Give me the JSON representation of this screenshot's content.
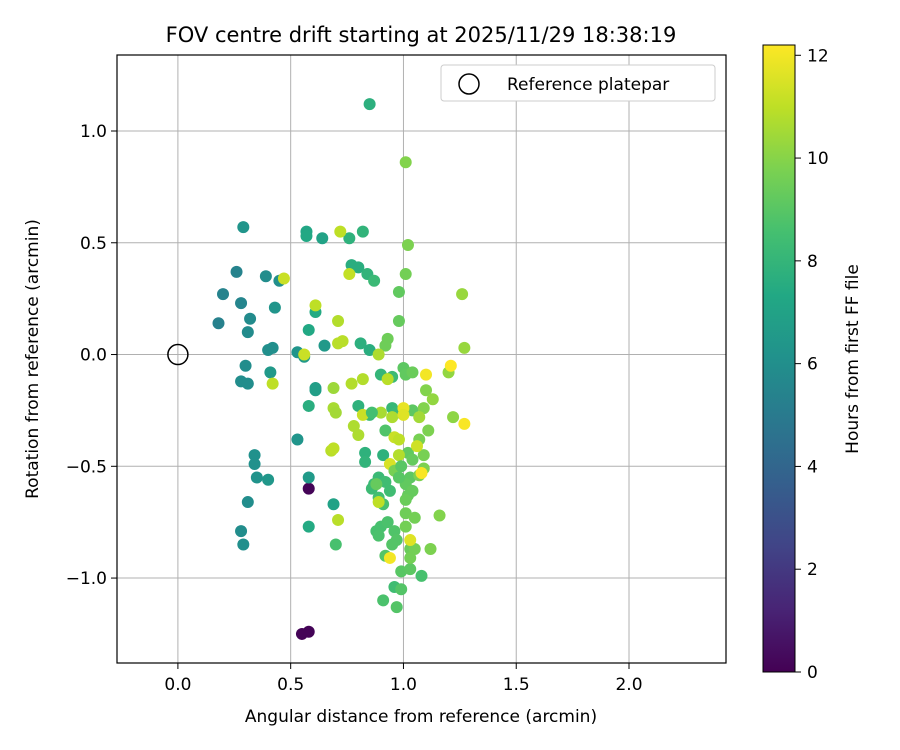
{
  "chart_data": {
    "type": "scatter",
    "title": "FOV centre drift starting at 2025/11/29 18:38:19",
    "xlabel": "Angular distance from reference (arcmin)",
    "ylabel": "Rotation from reference (arcmin)",
    "xlim": [
      -0.27,
      2.43
    ],
    "ylim": [
      -1.38,
      1.34
    ],
    "xticks": [
      0.0,
      0.5,
      1.0,
      1.5,
      2.0
    ],
    "xtick_labels": [
      "0.0",
      "0.5",
      "1.0",
      "1.5",
      "2.0"
    ],
    "yticks": [
      -1.0,
      -0.5,
      0.0,
      0.5,
      1.0
    ],
    "ytick_labels": [
      "−1.0",
      "−0.5",
      "0.0",
      "0.5",
      "1.0"
    ],
    "grid": true,
    "legend": {
      "position": "top-right",
      "label": "Reference platepar"
    },
    "reference_point": {
      "x": 0.0,
      "y": 0.0
    },
    "colorbar": {
      "label": "Hours from first FF file",
      "min": 0,
      "max": 12.2,
      "ticks": [
        0,
        2,
        4,
        6,
        8,
        10,
        12
      ],
      "tick_labels": [
        "0",
        "2",
        "4",
        "6",
        "8",
        "10",
        "12"
      ],
      "colormap": "viridis"
    },
    "points": [
      [
        0.58,
        -0.6,
        0.1
      ],
      [
        0.55,
        -1.25,
        0.1
      ],
      [
        0.58,
        -1.24,
        0.1
      ],
      [
        0.18,
        0.14,
        5.3
      ],
      [
        0.2,
        0.27,
        5.4
      ],
      [
        0.26,
        0.37,
        5.4
      ],
      [
        0.28,
        0.23,
        5.5
      ],
      [
        0.29,
        0.57,
        6.3
      ],
      [
        0.31,
        0.1,
        5.8
      ],
      [
        0.32,
        0.16,
        5.8
      ],
      [
        0.3,
        -0.05,
        5.9
      ],
      [
        0.28,
        -0.12,
        5.9
      ],
      [
        0.31,
        -0.13,
        5.9
      ],
      [
        0.39,
        0.35,
        5.9
      ],
      [
        0.43,
        0.21,
        6.3
      ],
      [
        0.45,
        0.33,
        6.0
      ],
      [
        0.4,
        0.02,
        6.0
      ],
      [
        0.42,
        0.03,
        6.0
      ],
      [
        0.41,
        -0.08,
        6.5
      ],
      [
        0.34,
        -0.45,
        6.1
      ],
      [
        0.34,
        -0.49,
        6.1
      ],
      [
        0.35,
        -0.55,
        6.2
      ],
      [
        0.4,
        -0.56,
        6.4
      ],
      [
        0.31,
        -0.66,
        5.9
      ],
      [
        0.28,
        -0.79,
        5.9
      ],
      [
        0.29,
        -0.85,
        6.0
      ],
      [
        0.53,
        -0.38,
        6.3
      ],
      [
        0.53,
        0.01,
        6.3
      ],
      [
        0.56,
        -0.01,
        6.5
      ],
      [
        0.57,
        0.55,
        7.2
      ],
      [
        0.57,
        0.53,
        7.3
      ],
      [
        0.64,
        0.52,
        7.0
      ],
      [
        0.58,
        0.11,
        7.3
      ],
      [
        0.61,
        0.19,
        7.4
      ],
      [
        0.61,
        -0.16,
        6.8
      ],
      [
        0.61,
        -0.15,
        6.8
      ],
      [
        0.58,
        -0.23,
        7.6
      ],
      [
        0.58,
        -0.55,
        6.6
      ],
      [
        0.58,
        -0.77,
        7.4
      ],
      [
        0.65,
        0.04,
        6.5
      ],
      [
        0.69,
        -0.67,
        7.0
      ],
      [
        0.7,
        -0.85,
        8.6
      ],
      [
        0.85,
        1.12,
        7.7
      ],
      [
        0.76,
        0.52,
        7.8
      ],
      [
        0.77,
        0.4,
        7.6
      ],
      [
        0.8,
        0.39,
        7.6
      ],
      [
        0.82,
        0.55,
        7.9
      ],
      [
        0.84,
        0.36,
        7.9
      ],
      [
        0.87,
        0.33,
        8.2
      ],
      [
        0.85,
        0.02,
        7.6
      ],
      [
        0.81,
        0.05,
        7.7
      ],
      [
        0.8,
        -0.23,
        7.8
      ],
      [
        0.83,
        -0.44,
        7.8
      ],
      [
        0.83,
        -0.48,
        7.9
      ],
      [
        0.85,
        -0.27,
        8.2
      ],
      [
        0.9,
        -0.09,
        8.0
      ],
      [
        0.95,
        -0.1,
        8.3
      ],
      [
        0.91,
        -0.45,
        7.8
      ],
      [
        0.92,
        -0.34,
        8.8
      ],
      [
        0.95,
        -0.24,
        8.1
      ],
      [
        0.97,
        -0.26,
        8.2
      ],
      [
        0.87,
        -0.58,
        8.2
      ],
      [
        0.89,
        -0.55,
        8.2
      ],
      [
        0.86,
        -0.6,
        8.3
      ],
      [
        0.92,
        -0.57,
        8.4
      ],
      [
        0.94,
        -0.61,
        8.4
      ],
      [
        0.89,
        -0.64,
        8.5
      ],
      [
        0.91,
        -0.67,
        8.6
      ],
      [
        0.88,
        -0.79,
        8.6
      ],
      [
        0.9,
        -0.77,
        8.6
      ],
      [
        0.89,
        -0.81,
        8.7
      ],
      [
        0.93,
        -0.75,
        8.7
      ],
      [
        0.96,
        -0.79,
        8.8
      ],
      [
        0.97,
        -0.83,
        8.9
      ],
      [
        0.95,
        -0.85,
        8.9
      ],
      [
        0.92,
        -0.9,
        8.9
      ],
      [
        0.96,
        -1.04,
        8.4
      ],
      [
        0.91,
        -1.1,
        8.7
      ],
      [
        0.97,
        -1.13,
        8.9
      ],
      [
        0.99,
        -1.05,
        8.9
      ],
      [
        0.99,
        -0.97,
        9.0
      ],
      [
        1.03,
        -0.96,
        9.1
      ],
      [
        1.08,
        -0.99,
        8.6
      ],
      [
        0.98,
        0.28,
        9.2
      ],
      [
        0.98,
        0.15,
        9.3
      ],
      [
        0.93,
        0.07,
        9.5
      ],
      [
        0.92,
        0.04,
        9.5
      ],
      [
        1.01,
        0.86,
        9.9
      ],
      [
        1.02,
        0.49,
        9.8
      ],
      [
        1.01,
        0.36,
        9.6
      ],
      [
        1.0,
        -0.06,
        9.1
      ],
      [
        1.01,
        -0.09,
        9.2
      ],
      [
        1.04,
        -0.08,
        9.4
      ],
      [
        1.04,
        -0.25,
        9.1
      ],
      [
        1.02,
        -0.44,
        9.2
      ],
      [
        1.04,
        -0.47,
        9.3
      ],
      [
        1.03,
        -0.55,
        9.1
      ],
      [
        1.01,
        -0.58,
        9.2
      ],
      [
        1.02,
        -0.63,
        9.3
      ],
      [
        1.04,
        -0.61,
        9.3
      ],
      [
        1.01,
        -0.65,
        9.4
      ],
      [
        1.01,
        -0.71,
        9.5
      ],
      [
        1.05,
        -0.73,
        9.6
      ],
      [
        1.01,
        -0.77,
        9.6
      ],
      [
        1.03,
        -0.87,
        9.4
      ],
      [
        1.05,
        -0.87,
        9.6
      ],
      [
        1.03,
        -0.91,
        9.6
      ],
      [
        1.07,
        -0.38,
        9.7
      ],
      [
        1.09,
        -0.45,
        9.7
      ],
      [
        1.09,
        -0.51,
        9.8
      ],
      [
        1.07,
        -0.54,
        9.8
      ],
      [
        1.11,
        -0.34,
        9.8
      ],
      [
        1.09,
        -0.24,
        9.9
      ],
      [
        1.1,
        -0.16,
        9.9
      ],
      [
        1.13,
        -0.2,
        10.2
      ],
      [
        1.12,
        -0.87,
        9.8
      ],
      [
        1.16,
        -0.72,
        9.9
      ],
      [
        1.2,
        -0.08,
        10.2
      ],
      [
        1.22,
        -0.28,
        10.1
      ],
      [
        1.26,
        0.27,
        10.3
      ],
      [
        1.27,
        0.03,
        10.3
      ],
      [
        0.72,
        0.55,
        11.0
      ],
      [
        0.76,
        0.36,
        11.1
      ],
      [
        0.71,
        0.15,
        10.8
      ],
      [
        0.71,
        0.05,
        10.9
      ],
      [
        0.73,
        0.06,
        10.9
      ],
      [
        0.69,
        -0.15,
        10.4
      ],
      [
        0.69,
        -0.24,
        10.6
      ],
      [
        0.7,
        -0.26,
        10.5
      ],
      [
        0.68,
        -0.43,
        10.9
      ],
      [
        0.69,
        -0.42,
        11.0
      ],
      [
        0.71,
        -0.74,
        10.9
      ],
      [
        0.77,
        -0.13,
        10.8
      ],
      [
        0.82,
        -0.11,
        10.8
      ],
      [
        0.78,
        -0.32,
        10.7
      ],
      [
        0.8,
        -0.36,
        10.7
      ],
      [
        0.82,
        -0.27,
        11.2
      ],
      [
        0.89,
        0.0,
        10.7
      ],
      [
        0.9,
        -0.26,
        10.6
      ],
      [
        0.95,
        -0.28,
        10.7
      ],
      [
        0.93,
        -0.11,
        10.9
      ],
      [
        0.89,
        -0.66,
        11.0
      ],
      [
        0.94,
        -0.49,
        11.5
      ],
      [
        0.96,
        -0.37,
        11.2
      ],
      [
        0.98,
        -0.38,
        11.0
      ],
      [
        1.0,
        -0.24,
        11.8
      ],
      [
        1.0,
        -0.27,
        11.6
      ],
      [
        0.98,
        -0.45,
        10.8
      ],
      [
        1.07,
        -0.28,
        10.5
      ],
      [
        1.1,
        -0.09,
        12.0
      ],
      [
        1.06,
        -0.41,
        11.3
      ],
      [
        1.03,
        -0.83,
        11.6
      ],
      [
        0.94,
        -0.91,
        12.0
      ],
      [
        1.08,
        -0.53,
        12.1
      ],
      [
        1.21,
        -0.05,
        12.2
      ],
      [
        1.27,
        -0.31,
        12.1
      ],
      [
        0.61,
        0.22,
        11.0
      ],
      [
        0.56,
        0.0,
        11.2
      ],
      [
        0.47,
        0.34,
        11.2
      ],
      [
        0.42,
        -0.13,
        11.0
      ],
      [
        0.88,
        -0.58,
        9.3
      ],
      [
        0.86,
        -0.26,
        8.5
      ],
      [
        0.96,
        -0.52,
        9.7
      ],
      [
        0.98,
        -0.55,
        9.0
      ],
      [
        0.99,
        -0.5,
        9.0
      ]
    ]
  }
}
